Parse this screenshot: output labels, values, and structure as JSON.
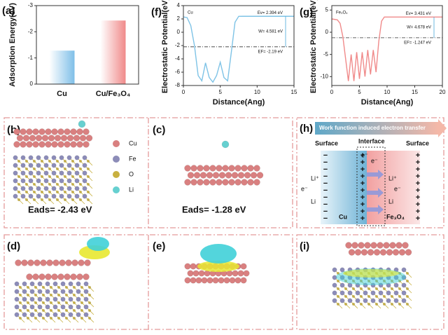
{
  "panel_labels": [
    "(a)",
    "(f)",
    "(g)",
    "(b)",
    "(c)",
    "(h)",
    "(d)",
    "(e)",
    "(i)"
  ],
  "chart_data": [
    {
      "type": "bar",
      "ylabel": "Adsorption Energy(eV)",
      "categories": [
        "Cu",
        "Cu/Fe₃O₄"
      ],
      "values": [
        -1.28,
        -2.43
      ],
      "colors": [
        "#7fbfe8",
        "#f08a8a"
      ],
      "ylim": [
        0,
        -3
      ],
      "yticks": [
        0,
        -1,
        -2,
        -3
      ]
    },
    {
      "type": "line",
      "inset_label": "Cu",
      "xlabel": "Distance(Ang)",
      "ylabel": "Electrostatic Potential(eV)",
      "x": [
        0,
        0.5,
        1,
        1.5,
        2,
        2.5,
        3,
        3.5,
        4,
        4.5,
        5,
        5.5,
        6,
        6.5,
        7,
        7.5,
        8,
        10,
        12,
        15
      ],
      "series": [
        {
          "color": "#7ec3e6",
          "values": [
            2.3,
            2.2,
            1.0,
            -2.0,
            -6.5,
            -7.3,
            -4.6,
            -6.8,
            -7.5,
            -6.5,
            -4.5,
            -6.8,
            -7.3,
            -3.0,
            1.5,
            2.39,
            2.394,
            2.394,
            2.394,
            2.394
          ]
        }
      ],
      "xlim": [
        0,
        15
      ],
      "xticks": [
        0,
        5,
        10,
        15
      ],
      "ylim": [
        -8,
        4
      ],
      "yticks": [
        -8,
        -6,
        -4,
        -2,
        0,
        2,
        4
      ],
      "vacuum_level": {
        "value": 2.394,
        "label": "Ev= 2.394 eV"
      },
      "work_function": {
        "value": 4.581,
        "label": "W= 4.581 eV"
      },
      "fermi_level": {
        "value": -2.19,
        "label": "EF= -2.19 eV"
      }
    },
    {
      "type": "line",
      "inset_label": "Fe₃O₄",
      "xlabel": "Distance(Ang)",
      "ylabel": "Electrostatic Potential(eV)",
      "x": [
        0,
        1,
        1.5,
        2,
        2.5,
        3,
        3.5,
        4,
        4.5,
        5,
        5.5,
        6,
        6.5,
        7,
        7.5,
        8,
        8.5,
        9,
        9.5,
        10,
        12,
        15,
        20
      ],
      "series": [
        {
          "color": "#f08a8a",
          "values": [
            3.0,
            2.8,
            2.0,
            -1.0,
            -6.0,
            -11.0,
            -5.0,
            -11.0,
            -4.5,
            -10.5,
            -4.5,
            -10.0,
            -4.0,
            -9.5,
            -4.0,
            -9.0,
            -2.0,
            2.5,
            3.43,
            3.431,
            3.431,
            3.431,
            3.431
          ]
        }
      ],
      "xlim": [
        0,
        20
      ],
      "xticks": [
        0,
        5,
        10,
        15,
        20
      ],
      "ylim": [
        -12,
        6
      ],
      "yticks": [
        -10,
        -5,
        0,
        5
      ],
      "vacuum_level": {
        "value": 3.431,
        "label": "Ev= 3.431 eV"
      },
      "work_function": {
        "value": 4.678,
        "label": "W= 4.678 eV"
      },
      "fermi_level": {
        "value": -1.247,
        "label": "EF= -1.247 eV"
      }
    }
  ],
  "structures": {
    "legend": [
      "Cu",
      "Fe",
      "O",
      "Li"
    ],
    "legend_colors": [
      "#d98080",
      "#8c8cb8",
      "#c8b040",
      "#66d0d0"
    ],
    "eads_b": "Eads= -2.43 eV",
    "eads_c": "Eads= -1.28 eV"
  },
  "diagram": {
    "banner": "Work function induced electron transfer",
    "surface_left": "Surface",
    "interface": "Interface",
    "surface_right": "Surface",
    "li_ion": "Li⁺",
    "electron": "e⁻",
    "li": "Li",
    "cu": "Cu",
    "fe3o4": "Fe₃O₄",
    "charges": [
      "−",
      "+"
    ]
  }
}
